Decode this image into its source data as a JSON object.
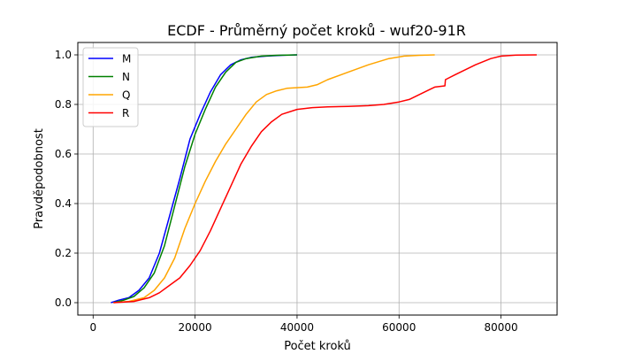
{
  "chart_data": {
    "type": "line",
    "title": "ECDF - Průměrný počet kroků - wuf20-91R",
    "xlabel": "Počet kroků",
    "ylabel": "Pravděpodobnost",
    "xlim": [
      -3000,
      91000
    ],
    "ylim": [
      -0.05,
      1.05
    ],
    "xticks": [
      0,
      20000,
      40000,
      60000,
      80000
    ],
    "yticks": [
      0.0,
      0.2,
      0.4,
      0.6,
      0.8,
      1.0
    ],
    "xtick_labels": [
      "0",
      "20000",
      "40000",
      "60000",
      "80000"
    ],
    "ytick_labels": [
      "0.0",
      "0.2",
      "0.4",
      "0.6",
      "0.8",
      "1.0"
    ],
    "grid": true,
    "legend_position": "top-left",
    "series": [
      {
        "name": "M",
        "color": "#0000ff",
        "points": [
          [
            3500,
            0.0
          ],
          [
            5000,
            0.01
          ],
          [
            7000,
            0.02
          ],
          [
            9000,
            0.05
          ],
          [
            11000,
            0.1
          ],
          [
            13000,
            0.2
          ],
          [
            15000,
            0.35
          ],
          [
            17000,
            0.5
          ],
          [
            19000,
            0.66
          ],
          [
            21000,
            0.76
          ],
          [
            23000,
            0.85
          ],
          [
            25000,
            0.92
          ],
          [
            27000,
            0.96
          ],
          [
            29000,
            0.98
          ],
          [
            31000,
            0.99
          ],
          [
            34000,
            0.995
          ],
          [
            37000,
            0.998
          ],
          [
            40000,
            1.0
          ]
        ]
      },
      {
        "name": "N",
        "color": "#008000",
        "points": [
          [
            4000,
            0.0
          ],
          [
            6000,
            0.01
          ],
          [
            8000,
            0.025
          ],
          [
            10000,
            0.06
          ],
          [
            12000,
            0.12
          ],
          [
            14000,
            0.23
          ],
          [
            16000,
            0.39
          ],
          [
            18000,
            0.55
          ],
          [
            20000,
            0.68
          ],
          [
            22000,
            0.78
          ],
          [
            24000,
            0.87
          ],
          [
            26000,
            0.93
          ],
          [
            28000,
            0.97
          ],
          [
            30000,
            0.985
          ],
          [
            33000,
            0.995
          ],
          [
            36000,
            0.998
          ],
          [
            40000,
            1.0
          ]
        ]
      },
      {
        "name": "Q",
        "color": "#ffa500",
        "points": [
          [
            4000,
            0.0
          ],
          [
            7000,
            0.005
          ],
          [
            10000,
            0.02
          ],
          [
            12000,
            0.05
          ],
          [
            14000,
            0.1
          ],
          [
            16000,
            0.18
          ],
          [
            18000,
            0.3
          ],
          [
            20000,
            0.4
          ],
          [
            22000,
            0.49
          ],
          [
            24000,
            0.57
          ],
          [
            26000,
            0.64
          ],
          [
            28000,
            0.7
          ],
          [
            30000,
            0.76
          ],
          [
            32000,
            0.81
          ],
          [
            34000,
            0.84
          ],
          [
            36000,
            0.855
          ],
          [
            38000,
            0.865
          ],
          [
            42000,
            0.87
          ],
          [
            44000,
            0.88
          ],
          [
            46000,
            0.9
          ],
          [
            50000,
            0.93
          ],
          [
            54000,
            0.96
          ],
          [
            58000,
            0.985
          ],
          [
            61000,
            0.995
          ],
          [
            64000,
            0.998
          ],
          [
            67000,
            1.0
          ]
        ]
      },
      {
        "name": "R",
        "color": "#ff0000",
        "points": [
          [
            4000,
            0.0
          ],
          [
            8000,
            0.005
          ],
          [
            11000,
            0.02
          ],
          [
            13000,
            0.04
          ],
          [
            15000,
            0.07
          ],
          [
            17000,
            0.1
          ],
          [
            19000,
            0.15
          ],
          [
            21000,
            0.21
          ],
          [
            23000,
            0.29
          ],
          [
            25000,
            0.38
          ],
          [
            27000,
            0.47
          ],
          [
            29000,
            0.56
          ],
          [
            31000,
            0.63
          ],
          [
            33000,
            0.69
          ],
          [
            35000,
            0.73
          ],
          [
            37000,
            0.76
          ],
          [
            40000,
            0.78
          ],
          [
            43000,
            0.787
          ],
          [
            46000,
            0.79
          ],
          [
            50000,
            0.792
          ],
          [
            54000,
            0.795
          ],
          [
            57000,
            0.8
          ],
          [
            60000,
            0.81
          ],
          [
            62000,
            0.82
          ],
          [
            64000,
            0.84
          ],
          [
            66000,
            0.86
          ],
          [
            67000,
            0.87
          ],
          [
            69000,
            0.875
          ],
          [
            69100,
            0.9
          ],
          [
            71000,
            0.92
          ],
          [
            73000,
            0.94
          ],
          [
            75000,
            0.96
          ],
          [
            78000,
            0.985
          ],
          [
            80000,
            0.995
          ],
          [
            83000,
            0.999
          ],
          [
            87000,
            1.0
          ]
        ]
      }
    ]
  }
}
